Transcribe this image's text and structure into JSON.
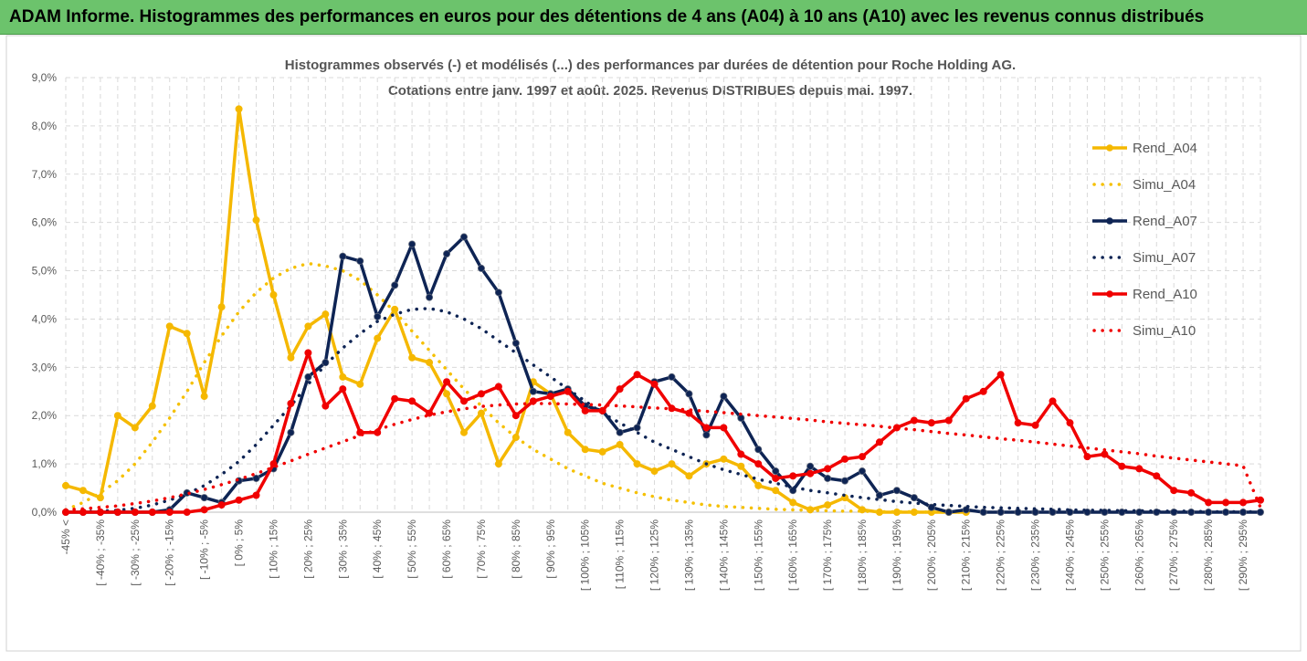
{
  "header": {
    "title": "ADAM Informe. Histogrammes des performances en euros pour des détentions de 4 ans (A04) à 10 ans (A10) avec les revenus connus distribués"
  },
  "chart_data": {
    "type": "line",
    "title_line1": "Histogrammes observés (-) et modélisés (...) des performances par durées de détention pour Roche Holding AG.",
    "title_line2": "Cotations entre janv. 1997 et août. 2025. Revenus DISTRIBUES depuis mai. 1997.",
    "ylim": [
      0,
      9
    ],
    "yticks": [
      "0,0%",
      "1,0%",
      "2,0%",
      "3,0%",
      "4,0%",
      "5,0%",
      "6,0%",
      "7,0%",
      "8,0%",
      "9,0%"
    ],
    "xtick_labels": [
      "-45% <",
      "[ -40% ; -35%",
      "[ -30% ; -25%",
      "[ -20% ; -15%",
      "[ -10% ; -5%",
      "[ 0% ; 5%",
      "[ 10% ; 15%",
      "[ 20% ; 25%",
      "[ 30% ; 35%",
      "[ 40% ; 45%",
      "[ 50% ; 55%",
      "[ 60% ; 65%",
      "[ 70% ; 75%",
      "[ 80% ; 85%",
      "[ 90% ; 95%",
      "[ 100% ; 105%",
      "[ 110% ; 115%",
      "[ 120% ; 125%",
      "[ 130% ; 135%",
      "[ 140% ; 145%",
      "[ 150% ; 155%",
      "[ 160% ; 165%",
      "[ 170% ; 175%",
      "[ 180% ; 185%",
      "[ 190% ; 195%",
      "[ 200% ; 205%",
      "[ 210% ; 215%",
      "[ 220% ; 225%",
      "[ 230% ; 235%",
      "[ 240% ; 245%",
      "[ 250% ; 255%",
      "[ 260% ; 265%",
      "[ 270% ; 275%",
      "[ 280% ; 285%",
      "[ 290% ; 295%"
    ],
    "n_bins": 70,
    "grid": true,
    "legend_position": "right",
    "series": [
      {
        "name": "Rend_A04",
        "color": "#f5b800",
        "style": "solid",
        "markers": true,
        "values": [
          0.55,
          0.45,
          0.3,
          2.0,
          1.75,
          2.2,
          3.85,
          3.7,
          2.4,
          4.25,
          8.35,
          6.05,
          4.5,
          3.2,
          3.85,
          4.1,
          2.8,
          2.65,
          3.6,
          4.2,
          3.2,
          3.1,
          2.45,
          1.65,
          2.05,
          1.0,
          1.55,
          2.7,
          2.45,
          1.65,
          1.3,
          1.25,
          1.4,
          1.0,
          0.85,
          1.0,
          0.75,
          1.0,
          1.1,
          0.95,
          0.55,
          0.45,
          0.2,
          0.05,
          0.15,
          0.3,
          0.05,
          0.0,
          0.0,
          0.0,
          0.0,
          0.0,
          0.0,
          null,
          null,
          null,
          null,
          null,
          null,
          null,
          null,
          null,
          null,
          null,
          null,
          null,
          null,
          null,
          null,
          null
        ]
      },
      {
        "name": "Simu_A04",
        "color": "#f5c000",
        "style": "dotted",
        "markers": false,
        "values": [
          0.05,
          0.2,
          0.4,
          0.65,
          1.0,
          1.45,
          1.95,
          2.5,
          3.1,
          3.65,
          4.15,
          4.55,
          4.85,
          5.05,
          5.15,
          5.1,
          5.0,
          4.8,
          4.5,
          4.15,
          3.75,
          3.35,
          2.95,
          2.55,
          2.2,
          1.85,
          1.55,
          1.3,
          1.1,
          0.9,
          0.75,
          0.6,
          0.5,
          0.4,
          0.32,
          0.25,
          0.2,
          0.15,
          0.12,
          0.1,
          0.08,
          0.06,
          0.05,
          0.04,
          0.03,
          0.02,
          0.02,
          0.01,
          0.01,
          0.01,
          0.0,
          0.0,
          0.0,
          null,
          null,
          null,
          null,
          null,
          null,
          null,
          null,
          null,
          null,
          null,
          null,
          null,
          null,
          null,
          null,
          null
        ]
      },
      {
        "name": "Rend_A07",
        "color": "#0e2454",
        "style": "solid",
        "markers": true,
        "values": [
          0.0,
          0.0,
          0.0,
          0.0,
          0.0,
          0.0,
          0.05,
          0.4,
          0.3,
          0.2,
          0.65,
          0.7,
          0.9,
          1.65,
          2.8,
          3.1,
          5.3,
          5.2,
          4.05,
          4.7,
          5.55,
          4.45,
          5.35,
          5.7,
          5.05,
          4.55,
          3.5,
          2.5,
          2.45,
          2.55,
          2.2,
          2.1,
          1.65,
          1.75,
          2.7,
          2.8,
          2.45,
          1.6,
          2.4,
          1.95,
          1.3,
          0.85,
          0.45,
          0.95,
          0.7,
          0.65,
          0.85,
          0.35,
          0.45,
          0.3,
          0.1,
          0.0,
          0.05,
          0.0,
          0.0,
          0.0,
          0.0,
          0.0,
          0.0,
          0.0,
          0.0,
          0.0,
          0.0,
          0.0,
          0.0,
          0.0,
          0.0,
          0.0,
          0.0,
          0.0
        ]
      },
      {
        "name": "Simu_A07",
        "color": "#0e2454",
        "style": "dotted",
        "markers": false,
        "values": [
          0.0,
          0.01,
          0.02,
          0.04,
          0.08,
          0.15,
          0.25,
          0.38,
          0.55,
          0.78,
          1.05,
          1.4,
          1.8,
          2.2,
          2.65,
          3.05,
          3.4,
          3.7,
          3.95,
          4.1,
          4.2,
          4.22,
          4.15,
          4.0,
          3.8,
          3.55,
          3.3,
          3.05,
          2.8,
          2.55,
          2.3,
          2.05,
          1.85,
          1.65,
          1.45,
          1.3,
          1.15,
          1.0,
          0.88,
          0.78,
          0.68,
          0.6,
          0.52,
          0.45,
          0.4,
          0.35,
          0.3,
          0.26,
          0.22,
          0.19,
          0.16,
          0.14,
          0.12,
          0.1,
          0.09,
          0.08,
          0.07,
          0.06,
          0.05,
          0.04,
          0.04,
          0.03,
          0.03,
          0.02,
          0.02,
          0.02,
          0.01,
          0.01,
          0.01,
          0.01
        ]
      },
      {
        "name": "Rend_A10",
        "color": "#f00000",
        "style": "solid",
        "markers": true,
        "values": [
          0.0,
          0.0,
          0.0,
          0.0,
          0.0,
          0.0,
          0.0,
          0.0,
          0.05,
          0.15,
          0.25,
          0.35,
          1.0,
          2.25,
          3.3,
          2.2,
          2.55,
          1.65,
          1.65,
          2.35,
          2.3,
          2.05,
          2.7,
          2.3,
          2.45,
          2.6,
          2.0,
          2.3,
          2.4,
          2.5,
          2.1,
          2.1,
          2.55,
          2.85,
          2.65,
          2.15,
          2.05,
          1.75,
          1.75,
          1.2,
          1.0,
          0.7,
          0.75,
          0.8,
          0.9,
          1.1,
          1.15,
          1.45,
          1.75,
          1.9,
          1.85,
          1.9,
          2.35,
          2.5,
          2.85,
          1.85,
          1.8,
          2.3,
          1.85,
          1.15,
          1.2,
          0.95,
          0.9,
          0.75,
          0.45,
          0.4,
          0.2,
          0.2,
          0.2,
          0.25
        ]
      },
      {
        "name": "Simu_A10",
        "color": "#f00000",
        "style": "dotted",
        "markers": false,
        "values": [
          0.05,
          0.07,
          0.1,
          0.13,
          0.18,
          0.23,
          0.3,
          0.38,
          0.47,
          0.57,
          0.68,
          0.8,
          0.93,
          1.06,
          1.2,
          1.33,
          1.46,
          1.59,
          1.71,
          1.82,
          1.92,
          2.01,
          2.08,
          2.14,
          2.19,
          2.22,
          2.24,
          2.25,
          2.25,
          2.24,
          2.23,
          2.22,
          2.2,
          2.18,
          2.16,
          2.14,
          2.12,
          2.09,
          2.06,
          2.03,
          2.0,
          1.97,
          1.94,
          1.91,
          1.87,
          1.84,
          1.81,
          1.78,
          1.74,
          1.71,
          1.67,
          1.63,
          1.6,
          1.56,
          1.52,
          1.49,
          1.45,
          1.41,
          1.37,
          1.33,
          1.29,
          1.25,
          1.21,
          1.16,
          1.12,
          1.08,
          1.04,
          1.0,
          0.96,
          0.1
        ]
      }
    ]
  }
}
